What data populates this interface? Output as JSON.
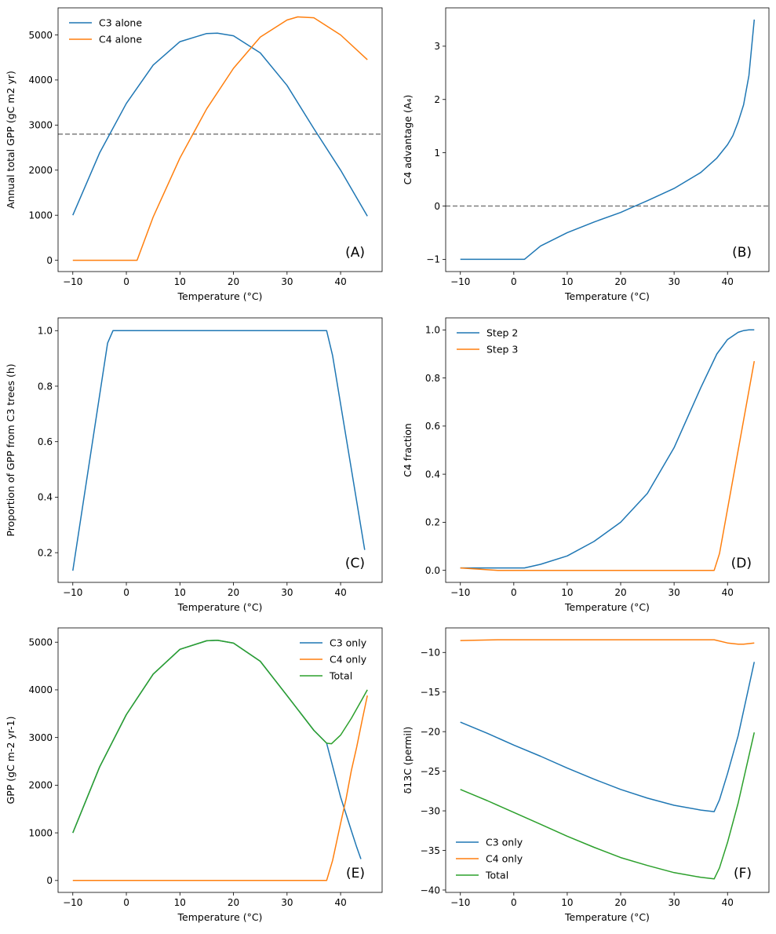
{
  "figure": {
    "grid": false,
    "colors": {
      "blue": "#1f77b4",
      "orange": "#ff7f0e",
      "green": "#2ca02c",
      "ref": "#7f7f7f"
    }
  },
  "chart_data": [
    {
      "panel": "(A)",
      "type": "line",
      "xlabel": "Temperature (°C)",
      "ylabel": "Annual total GPP (gC m2 yr)",
      "xlim": [
        -12.75,
        47.75
      ],
      "ylim": [
        -250,
        5600
      ],
      "xticks": [
        -10,
        0,
        10,
        20,
        30,
        40
      ],
      "yticks": [
        0,
        1000,
        2000,
        3000,
        4000,
        5000
      ],
      "legend": "top-left",
      "hline": 2800,
      "series": [
        {
          "name": "C3 alone",
          "color": "#1f77b4",
          "x": [
            -10,
            -5,
            0,
            5,
            10,
            15,
            17,
            20,
            25,
            30,
            35,
            40,
            45
          ],
          "y": [
            1000,
            2380,
            3480,
            4330,
            4850,
            5030,
            5040,
            4980,
            4600,
            3880,
            2920,
            2000,
            980
          ]
        },
        {
          "name": "C4 alone",
          "color": "#ff7f0e",
          "x": [
            -10,
            2,
            5,
            10,
            15,
            20,
            25,
            30,
            32,
            35,
            40,
            45
          ],
          "y": [
            0,
            0,
            960,
            2270,
            3360,
            4260,
            4950,
            5330,
            5400,
            5380,
            5000,
            4450
          ]
        }
      ]
    },
    {
      "panel": "(B)",
      "type": "line",
      "xlabel": "Temperature (°C)",
      "ylabel": "C4 advantage (A₄)",
      "xlim": [
        -12.75,
        47.75
      ],
      "ylim": [
        -1.23,
        3.72
      ],
      "xticks": [
        -10,
        0,
        10,
        20,
        30,
        40
      ],
      "yticks": [
        -1,
        0,
        1,
        2,
        3
      ],
      "hline": 0,
      "series": [
        {
          "name": "",
          "color": "#1f77b4",
          "x": [
            -10,
            2,
            5,
            10,
            15,
            20,
            22.7,
            25,
            30,
            35,
            38,
            40,
            41,
            42,
            43,
            44,
            45
          ],
          "y": [
            -1,
            -1,
            -0.75,
            -0.5,
            -0.3,
            -0.12,
            0,
            0.1,
            0.33,
            0.63,
            0.9,
            1.15,
            1.32,
            1.58,
            1.9,
            2.45,
            3.5
          ]
        }
      ]
    },
    {
      "panel": "(C)",
      "type": "line",
      "xlabel": "Temperature (°C)",
      "ylabel": "Proportion of GPP from C3 trees (h)",
      "xlim": [
        -12.75,
        47.75
      ],
      "ylim": [
        0.093,
        1.046
      ],
      "xticks": [
        -10,
        0,
        10,
        20,
        30,
        40
      ],
      "yticks": [
        0.2,
        0.4,
        0.6,
        0.8,
        1.0
      ],
      "series": [
        {
          "name": "",
          "color": "#1f77b4",
          "x": [
            -10,
            -3.5,
            -2.5,
            37.4,
            38.5,
            44.5
          ],
          "y": [
            0.135,
            0.955,
            1.0,
            1.0,
            0.91,
            0.21
          ]
        }
      ]
    },
    {
      "panel": "(D)",
      "type": "line",
      "xlabel": "Temperature (°C)",
      "ylabel": "C4 fraction",
      "xlim": [
        -12.75,
        47.75
      ],
      "ylim": [
        -0.05,
        1.05
      ],
      "xticks": [
        -10,
        0,
        10,
        20,
        30,
        40
      ],
      "yticks": [
        0.0,
        0.2,
        0.4,
        0.6,
        0.8,
        1.0
      ],
      "legend": "top-left",
      "series": [
        {
          "name": "Step 2",
          "color": "#1f77b4",
          "x": [
            -10,
            2,
            5,
            10,
            15,
            20,
            25,
            30,
            35,
            38,
            40,
            42,
            43,
            44,
            45
          ],
          "y": [
            0.01,
            0.01,
            0.025,
            0.06,
            0.12,
            0.2,
            0.32,
            0.51,
            0.76,
            0.9,
            0.96,
            0.99,
            0.997,
            1.0,
            1.0
          ]
        },
        {
          "name": "Step 3",
          "color": "#ff7f0e",
          "x": [
            -10,
            -3,
            37.5,
            38.5,
            45
          ],
          "y": [
            0.01,
            0.0,
            0.0,
            0.07,
            0.87
          ]
        }
      ]
    },
    {
      "panel": "(E)",
      "type": "line",
      "xlabel": "Temperature (°C)",
      "ylabel": "GPP (gC m-2 yr-1)",
      "xlim": [
        -12.75,
        47.75
      ],
      "ylim": [
        -250,
        5300
      ],
      "xticks": [
        -10,
        0,
        10,
        20,
        30,
        40
      ],
      "yticks": [
        0,
        1000,
        2000,
        3000,
        4000,
        5000
      ],
      "legend": "top-right",
      "series": [
        {
          "name": "C3 only",
          "color": "#1f77b4",
          "x": [
            -10,
            -5,
            0,
            5,
            10,
            15,
            17,
            20,
            25,
            30,
            35,
            37.4,
            38.5,
            40,
            41,
            42,
            43,
            43.8
          ],
          "y": [
            1000,
            2380,
            3480,
            4330,
            4850,
            5030,
            5040,
            4980,
            4600,
            3880,
            3150,
            2880,
            2400,
            1750,
            1400,
            1050,
            700,
            450
          ]
        },
        {
          "name": "C4 only",
          "color": "#ff7f0e",
          "x": [
            -10,
            37.4,
            38.5,
            40,
            41,
            42,
            43,
            44,
            45
          ],
          "y": [
            0,
            0,
            420,
            1200,
            1700,
            2300,
            2800,
            3350,
            3880
          ]
        },
        {
          "name": "Total",
          "color": "#2ca02c",
          "x": [
            -10,
            -5,
            0,
            5,
            10,
            15,
            17,
            20,
            25,
            30,
            35,
            37.4,
            38.3,
            40,
            42,
            44,
            45
          ],
          "y": [
            1000,
            2380,
            3480,
            4330,
            4850,
            5030,
            5040,
            4980,
            4600,
            3880,
            3150,
            2880,
            2870,
            3050,
            3400,
            3800,
            4000
          ]
        }
      ]
    },
    {
      "panel": "(F)",
      "type": "line",
      "xlabel": "Temperature (°C)",
      "ylabel": "δ13C (permil)",
      "xlim": [
        -12.75,
        47.75
      ],
      "ylim": [
        -40.3,
        -6.9
      ],
      "xticks": [
        -10,
        0,
        10,
        20,
        30,
        40
      ],
      "yticks": [
        -40,
        -35,
        -30,
        -25,
        -20,
        -15,
        -10
      ],
      "legend": "bottom-left",
      "series": [
        {
          "name": "C3 only",
          "color": "#1f77b4",
          "x": [
            -10,
            -5,
            0,
            5,
            10,
            15,
            20,
            25,
            30,
            35,
            37.5,
            38.5,
            40,
            42,
            45
          ],
          "y": [
            -18.8,
            -20.2,
            -21.7,
            -23.1,
            -24.6,
            -26.0,
            -27.3,
            -28.4,
            -29.3,
            -29.9,
            -30.1,
            -28.6,
            -25.3,
            -20.5,
            -11.2
          ]
        },
        {
          "name": "C4 only",
          "color": "#ff7f0e",
          "x": [
            -10,
            -3,
            37.5,
            40,
            42,
            43,
            45
          ],
          "y": [
            -8.5,
            -8.4,
            -8.4,
            -8.8,
            -8.95,
            -8.95,
            -8.8
          ]
        },
        {
          "name": "Total",
          "color": "#2ca02c",
          "x": [
            -10,
            -5,
            0,
            5,
            10,
            15,
            20,
            25,
            30,
            35,
            37.5,
            38.5,
            40,
            42,
            45
          ],
          "y": [
            -27.3,
            -28.7,
            -30.2,
            -31.7,
            -33.2,
            -34.6,
            -35.9,
            -36.9,
            -37.8,
            -38.4,
            -38.6,
            -37.2,
            -34.0,
            -29.0,
            -20.1
          ]
        }
      ]
    }
  ]
}
